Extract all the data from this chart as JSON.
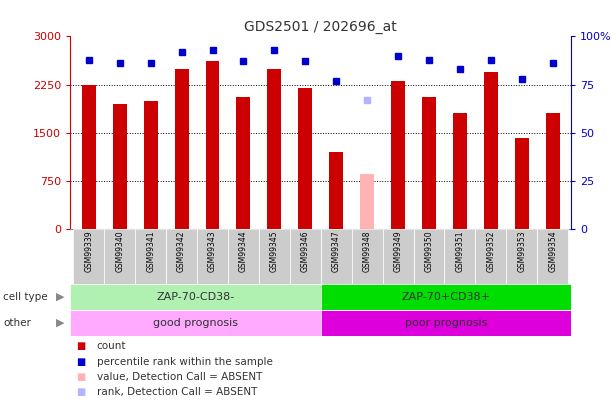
{
  "title": "GDS2501 / 202696_at",
  "samples": [
    "GSM99339",
    "GSM99340",
    "GSM99341",
    "GSM99342",
    "GSM99343",
    "GSM99344",
    "GSM99345",
    "GSM99346",
    "GSM99347",
    "GSM99348",
    "GSM99349",
    "GSM99350",
    "GSM99351",
    "GSM99352",
    "GSM99353",
    "GSM99354"
  ],
  "counts": [
    2250,
    1950,
    2000,
    2500,
    2620,
    2050,
    2500,
    2200,
    1200,
    850,
    2300,
    2050,
    1800,
    2450,
    1420,
    1800
  ],
  "count_colors": [
    "#cc0000",
    "#cc0000",
    "#cc0000",
    "#cc0000",
    "#cc0000",
    "#cc0000",
    "#cc0000",
    "#cc0000",
    "#cc0000",
    "#ffb3b3",
    "#cc0000",
    "#cc0000",
    "#cc0000",
    "#cc0000",
    "#cc0000",
    "#cc0000"
  ],
  "ranks": [
    88,
    86,
    86,
    92,
    93,
    87,
    93,
    87,
    77,
    null,
    90,
    88,
    83,
    88,
    78,
    86
  ],
  "rank_absent": [
    null,
    null,
    null,
    null,
    null,
    null,
    null,
    null,
    null,
    67,
    null,
    null,
    null,
    null,
    null,
    null
  ],
  "cell_type_groups": [
    {
      "label": "ZAP-70-CD38-",
      "start": 0,
      "end": 8,
      "color": "#b0f0b0"
    },
    {
      "label": "ZAP-70+CD38+",
      "start": 8,
      "end": 16,
      "color": "#00dd00"
    }
  ],
  "other_groups": [
    {
      "label": "good prognosis",
      "start": 0,
      "end": 8,
      "color": "#ffaaff"
    },
    {
      "label": "poor prognosis",
      "start": 8,
      "end": 16,
      "color": "#dd00dd"
    }
  ],
  "ylim_left": [
    0,
    3000
  ],
  "ylim_right": [
    0,
    100
  ],
  "yticks_left": [
    0,
    750,
    1500,
    2250,
    3000
  ],
  "yticks_right": [
    0,
    25,
    50,
    75,
    100
  ],
  "left_axis_color": "#cc0000",
  "right_axis_color": "#0000cc",
  "bg_color": "#ffffff",
  "grid_color": "#000000",
  "tick_bg_color": "#cccccc",
  "legend_items": [
    {
      "label": "count",
      "color": "#cc0000"
    },
    {
      "label": "percentile rank within the sample",
      "color": "#0000cc"
    },
    {
      "label": "value, Detection Call = ABSENT",
      "color": "#ffb3b3"
    },
    {
      "label": "rank, Detection Call = ABSENT",
      "color": "#b3b3ff"
    }
  ]
}
